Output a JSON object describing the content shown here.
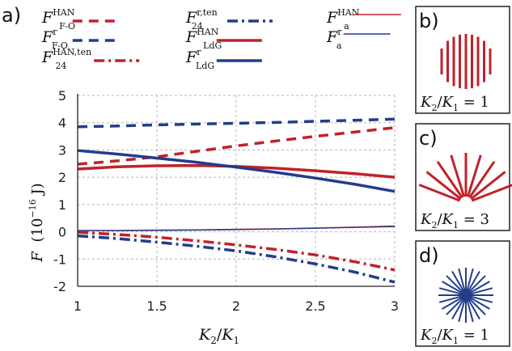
{
  "chart_data": {
    "type": "line",
    "panel_label": "a)",
    "xlim": [
      1,
      3
    ],
    "ylim": [
      -2,
      5
    ],
    "x_ticks": [
      "1",
      "1.5",
      "2",
      "2.5",
      "3"
    ],
    "y_ticks": [
      "5",
      "4",
      "3",
      "2",
      "1",
      "0",
      "-1",
      "-2"
    ],
    "grid": true,
    "legend_placement": "top",
    "x": [
      1.0,
      1.25,
      1.5,
      1.75,
      2.0,
      2.25,
      2.5,
      2.75,
      3.0
    ],
    "series": [
      {
        "key": "fo_han",
        "base": "F",
        "sub": "F-O",
        "sup": "HAN",
        "color": "#c0222b",
        "style": "dash",
        "width": 3.5,
        "values": [
          2.48,
          2.6,
          2.75,
          2.95,
          3.15,
          3.33,
          3.5,
          3.66,
          3.82
        ]
      },
      {
        "key": "fo_r",
        "base": "F",
        "sub": "F-O",
        "sup": "r",
        "color": "#233c8c",
        "style": "dash",
        "width": 3.5,
        "values": [
          3.85,
          3.88,
          3.92,
          3.95,
          3.98,
          4.01,
          4.05,
          4.09,
          4.13
        ]
      },
      {
        "key": "f24_han",
        "base": "F",
        "sub": "24",
        "sup": "HAN,ten",
        "color": "#c0222b",
        "style": "dashdot",
        "width": 3.5,
        "values": [
          -0.02,
          -0.1,
          -0.2,
          -0.33,
          -0.48,
          -0.65,
          -0.85,
          -1.1,
          -1.4
        ]
      },
      {
        "key": "f24_r",
        "base": "F",
        "sub": "24",
        "sup": "r,ten",
        "color": "#233c8c",
        "style": "dashdot",
        "width": 3.5,
        "values": [
          -0.15,
          -0.25,
          -0.38,
          -0.53,
          -0.7,
          -0.92,
          -1.18,
          -1.48,
          -1.85
        ]
      },
      {
        "key": "ldg_han",
        "base": "F",
        "sub": "LdG",
        "sup": "HAN",
        "color": "#c0222b",
        "style": "solid",
        "width": 3.5,
        "values": [
          2.3,
          2.38,
          2.42,
          2.43,
          2.4,
          2.33,
          2.24,
          2.13,
          2.0
        ]
      },
      {
        "key": "ldg_r",
        "base": "F",
        "sub": "LdG",
        "sup": "r",
        "color": "#233c8c",
        "style": "solid",
        "width": 3.5,
        "values": [
          2.98,
          2.85,
          2.7,
          2.55,
          2.37,
          2.18,
          1.97,
          1.74,
          1.48
        ]
      },
      {
        "key": "a_han",
        "base": "F",
        "sub": "a",
        "sup": "HAN",
        "color": "#c0222b",
        "style": "solid",
        "width": 1.4,
        "values": [
          0.05,
          0.05,
          0.06,
          0.07,
          0.09,
          0.11,
          0.14,
          0.17,
          0.21
        ]
      },
      {
        "key": "a_r",
        "base": "F",
        "sub": "a",
        "sup": "r",
        "color": "#233c8c",
        "style": "solid",
        "width": 1.4,
        "values": [
          0.04,
          0.04,
          0.05,
          0.06,
          0.08,
          0.1,
          0.13,
          0.16,
          0.19
        ]
      }
    ],
    "xlabel": {
      "base": "K",
      "sub1": "2",
      "slash": "/",
      "base2": "K",
      "sub2": "1"
    },
    "ylabel": {
      "base": "F",
      "unit": "(10",
      "exp": "−16",
      "unit_tail": " J)"
    }
  },
  "side_panels": [
    {
      "label": "b)",
      "caption": {
        "k2": "2",
        "k1": "1",
        "eq": " = 1"
      },
      "kind": "vertical",
      "color": "#c0222b"
    },
    {
      "label": "c)",
      "caption": {
        "k2": "2",
        "k1": "1",
        "eq": " = 3"
      },
      "kind": "fan",
      "color": "#c0222b"
    },
    {
      "label": "d)",
      "caption": {
        "k2": "2",
        "k1": "1",
        "eq": " = 1"
      },
      "kind": "star",
      "color": "#233c8c"
    }
  ]
}
